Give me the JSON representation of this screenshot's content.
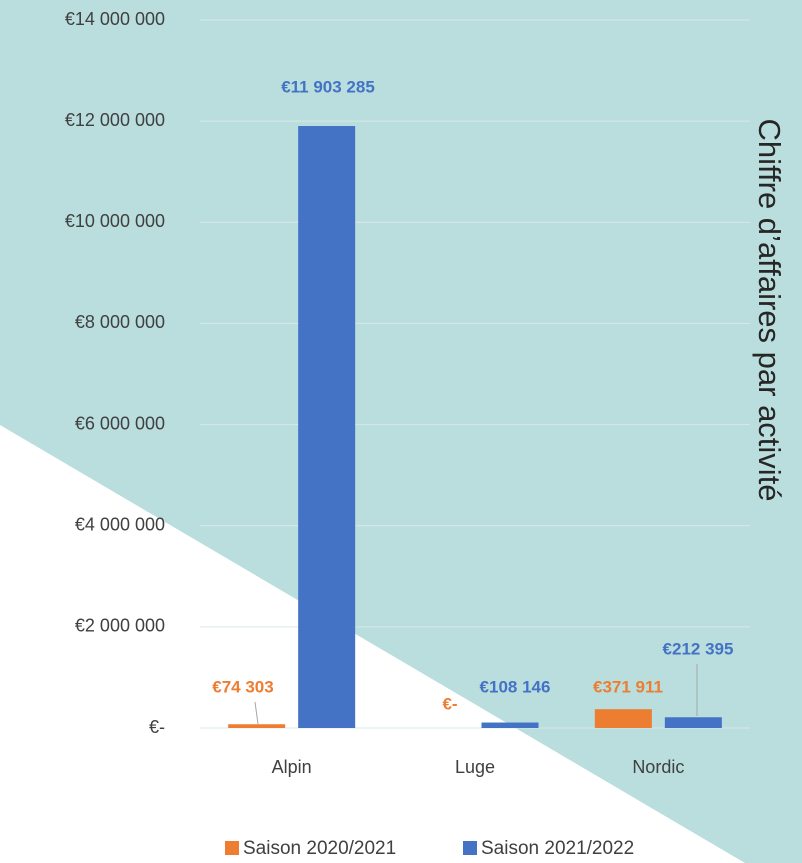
{
  "chart_data": {
    "type": "bar",
    "title": "Chiffre d’affaires par activité",
    "categories": [
      "Alpin",
      "Luge",
      "Nordic"
    ],
    "series": [
      {
        "name": "Saison 2020/2021",
        "color": "#ed7d31",
        "values": [
          74303,
          0,
          371911
        ],
        "value_labels": [
          "€74 303",
          "€-",
          "€371 911"
        ]
      },
      {
        "name": "Saison 2021/2022",
        "color": "#4472c4",
        "values": [
          11903285,
          108146,
          212395
        ],
        "value_labels": [
          "€11 903 285",
          "€108 146",
          "€212 395"
        ]
      }
    ],
    "ylim": [
      0,
      14000000
    ],
    "yticks": [
      {
        "value": 0,
        "label": "€-"
      },
      {
        "value": 2000000,
        "label": "€2 000 000"
      },
      {
        "value": 4000000,
        "label": "€4 000 000"
      },
      {
        "value": 6000000,
        "label": "€6 000 000"
      },
      {
        "value": 8000000,
        "label": "€8 000 000"
      },
      {
        "value": 10000000,
        "label": "€10 000 000"
      },
      {
        "value": 12000000,
        "label": "€12 000 000"
      },
      {
        "value": 14000000,
        "label": "€14 000 000"
      }
    ],
    "grid": true,
    "legend": "bottom"
  }
}
